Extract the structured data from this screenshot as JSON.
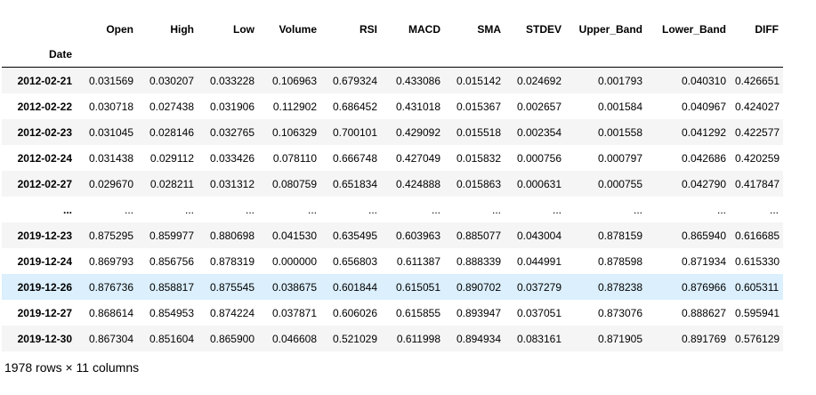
{
  "table": {
    "columns": [
      "Open",
      "High",
      "Low",
      "Volume",
      "RSI",
      "MACD",
      "SMA",
      "STDEV",
      "Upper_Band",
      "Lower_Band",
      "DIFF"
    ],
    "index_name": "Date",
    "rows": [
      {
        "date": "2012-02-21",
        "values": [
          "0.031569",
          "0.030207",
          "0.033228",
          "0.106963",
          "0.679324",
          "0.433086",
          "0.015142",
          "0.024692",
          "0.001793",
          "0.040310",
          "0.426651"
        ]
      },
      {
        "date": "2012-02-22",
        "values": [
          "0.030718",
          "0.027438",
          "0.031906",
          "0.112902",
          "0.686452",
          "0.431018",
          "0.015367",
          "0.002657",
          "0.001584",
          "0.040967",
          "0.424027"
        ]
      },
      {
        "date": "2012-02-23",
        "values": [
          "0.031045",
          "0.028146",
          "0.032765",
          "0.106329",
          "0.700101",
          "0.429092",
          "0.015518",
          "0.002354",
          "0.001558",
          "0.041292",
          "0.422577"
        ]
      },
      {
        "date": "2012-02-24",
        "values": [
          "0.031438",
          "0.029112",
          "0.033426",
          "0.078110",
          "0.666748",
          "0.427049",
          "0.015832",
          "0.000756",
          "0.000797",
          "0.042686",
          "0.420259"
        ]
      },
      {
        "date": "2012-02-27",
        "values": [
          "0.029670",
          "0.028211",
          "0.031312",
          "0.080759",
          "0.651834",
          "0.424888",
          "0.015863",
          "0.000631",
          "0.000755",
          "0.042790",
          "0.417847"
        ]
      },
      {
        "date": "...",
        "values": [
          "...",
          "...",
          "...",
          "...",
          "...",
          "...",
          "...",
          "...",
          "...",
          "...",
          "..."
        ]
      },
      {
        "date": "2019-12-23",
        "values": [
          "0.875295",
          "0.859977",
          "0.880698",
          "0.041530",
          "0.635495",
          "0.603963",
          "0.885077",
          "0.043004",
          "0.878159",
          "0.865940",
          "0.616685"
        ]
      },
      {
        "date": "2019-12-24",
        "values": [
          "0.869793",
          "0.856756",
          "0.878319",
          "0.000000",
          "0.656803",
          "0.611387",
          "0.888339",
          "0.044991",
          "0.878598",
          "0.871934",
          "0.615330"
        ]
      },
      {
        "date": "2019-12-26",
        "values": [
          "0.876736",
          "0.858817",
          "0.875545",
          "0.038675",
          "0.601844",
          "0.615051",
          "0.890702",
          "0.037279",
          "0.878238",
          "0.876966",
          "0.605311"
        ],
        "highlighted": true
      },
      {
        "date": "2019-12-27",
        "values": [
          "0.868614",
          "0.854953",
          "0.874224",
          "0.037871",
          "0.606026",
          "0.615855",
          "0.893947",
          "0.037051",
          "0.873076",
          "0.888627",
          "0.595941"
        ]
      },
      {
        "date": "2019-12-30",
        "values": [
          "0.867304",
          "0.851604",
          "0.865900",
          "0.046608",
          "0.521029",
          "0.611998",
          "0.894934",
          "0.083161",
          "0.871905",
          "0.891769",
          "0.576129"
        ]
      }
    ]
  },
  "footer": "1978 rows × 11 columns",
  "colors": {
    "stripe": "#f5f5f5",
    "hover_row": "#dbeffc"
  }
}
